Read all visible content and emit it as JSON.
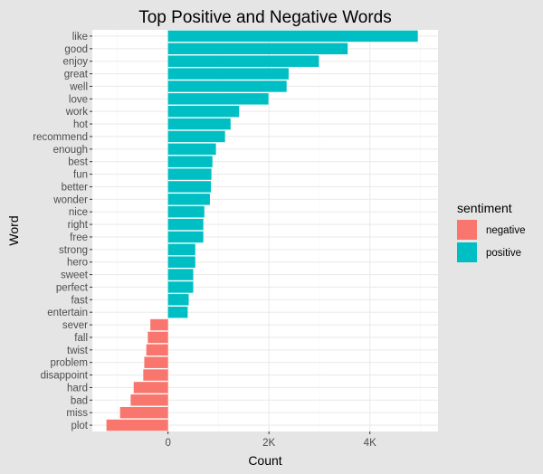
{
  "chart_data": {
    "type": "bar",
    "orientation": "horizontal",
    "title": "Top Positive and Negative Words",
    "xlabel": "Count",
    "ylabel": "Word",
    "xlim": [
      -1500,
      5350
    ],
    "xticks": [
      0,
      2000,
      4000
    ],
    "xtick_labels": [
      "0",
      "2K",
      "4K"
    ],
    "grid": true,
    "legend": {
      "title": "sentiment",
      "position": "right",
      "entries": [
        {
          "label": "negative",
          "color": "#F8766D"
        },
        {
          "label": "positive",
          "color": "#00BFC4"
        }
      ]
    },
    "categories": [
      "like",
      "good",
      "enjoy",
      "great",
      "well",
      "love",
      "work",
      "hot",
      "recommend",
      "enough",
      "best",
      "fun",
      "better",
      "wonder",
      "nice",
      "right",
      "free",
      "strong",
      "hero",
      "sweet",
      "perfect",
      "fast",
      "entertain",
      "sever",
      "fall",
      "twist",
      "problem",
      "disappoint",
      "hard",
      "bad",
      "miss",
      "plot"
    ],
    "values": [
      4950,
      3560,
      2990,
      2390,
      2350,
      1990,
      1410,
      1240,
      1130,
      950,
      880,
      860,
      850,
      830,
      720,
      700,
      700,
      540,
      540,
      500,
      500,
      410,
      390,
      -350,
      -400,
      -430,
      -470,
      -490,
      -680,
      -740,
      -950,
      -1220
    ],
    "sentiment": [
      "positive",
      "positive",
      "positive",
      "positive",
      "positive",
      "positive",
      "positive",
      "positive",
      "positive",
      "positive",
      "positive",
      "positive",
      "positive",
      "positive",
      "positive",
      "positive",
      "positive",
      "positive",
      "positive",
      "positive",
      "positive",
      "positive",
      "positive",
      "negative",
      "negative",
      "negative",
      "negative",
      "negative",
      "negative",
      "negative",
      "negative",
      "negative"
    ]
  }
}
